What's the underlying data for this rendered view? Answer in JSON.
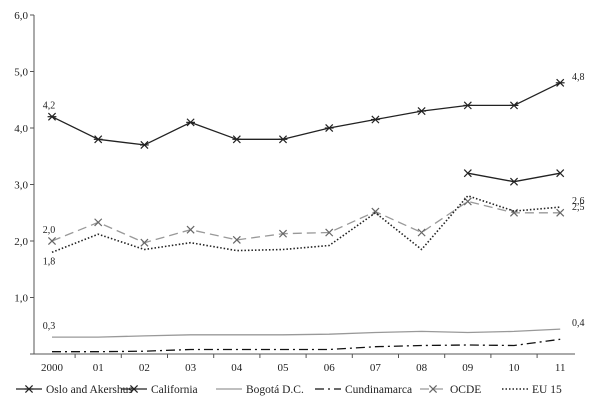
{
  "chart_data": {
    "type": "line",
    "title": "",
    "xlabel": "",
    "ylabel": "",
    "ylim": [
      0,
      6
    ],
    "y_ticks": [
      "",
      "1,0",
      "2,0",
      "3,0",
      "4,0",
      "5,0",
      "6,0"
    ],
    "categories": [
      "2000",
      "01",
      "02",
      "03",
      "04",
      "05",
      "06",
      "07",
      "08",
      "09",
      "10",
      "11"
    ],
    "grid": false,
    "legend_position": "bottom",
    "series": [
      {
        "name": "Oslo and Akershus",
        "values": [
          4.2,
          3.8,
          3.7,
          4.1,
          3.8,
          3.8,
          4.0,
          4.15,
          4.3,
          4.4,
          4.4,
          4.8
        ],
        "color": "#222222",
        "style": "solid",
        "marker": "asterisk"
      },
      {
        "name": "California",
        "values": [
          null,
          null,
          null,
          null,
          null,
          null,
          null,
          null,
          null,
          3.2,
          3.05,
          3.2
        ],
        "color": "#222222",
        "style": "solid",
        "marker": "x"
      },
      {
        "name": "Bogotá D.C.",
        "values": [
          0.3,
          0.3,
          0.32,
          0.34,
          0.34,
          0.34,
          0.35,
          0.38,
          0.4,
          0.38,
          0.4,
          0.44
        ],
        "color": "#999999",
        "style": "solid",
        "marker": "none"
      },
      {
        "name": "Cundinamarca",
        "values": [
          0.04,
          0.04,
          0.05,
          0.08,
          0.08,
          0.08,
          0.08,
          0.13,
          0.15,
          0.16,
          0.15,
          0.26
        ],
        "color": "#111111",
        "style": "dashdot",
        "marker": "none"
      },
      {
        "name": "OCDE",
        "values": [
          2.0,
          2.33,
          1.97,
          2.2,
          2.02,
          2.13,
          2.15,
          2.52,
          2.15,
          2.7,
          2.5,
          2.5
        ],
        "color": "#999999",
        "style": "dashed",
        "marker": "x"
      },
      {
        "name": "EU 15",
        "values": [
          1.8,
          2.12,
          1.85,
          1.97,
          1.83,
          1.85,
          1.92,
          2.5,
          1.85,
          2.8,
          2.53,
          2.6
        ],
        "color": "#222222",
        "style": "dotted",
        "marker": "none"
      }
    ],
    "data_labels": [
      {
        "text": "4,2",
        "series": "Oslo and Akershus",
        "index": 0
      },
      {
        "text": "4,8",
        "series": "Oslo and Akershus",
        "index": 11
      },
      {
        "text": "2,0",
        "series": "OCDE",
        "index": 0
      },
      {
        "text": "1,8",
        "series": "EU 15",
        "index": 0
      },
      {
        "text": "2,6",
        "series": "EU 15",
        "index": 11
      },
      {
        "text": "2,5",
        "series": "OCDE",
        "index": 11
      },
      {
        "text": "0,3",
        "series": "Bogotá D.C.",
        "index": 0
      },
      {
        "text": "0,4",
        "series": "Bogotá D.C.",
        "index": 11
      }
    ]
  }
}
